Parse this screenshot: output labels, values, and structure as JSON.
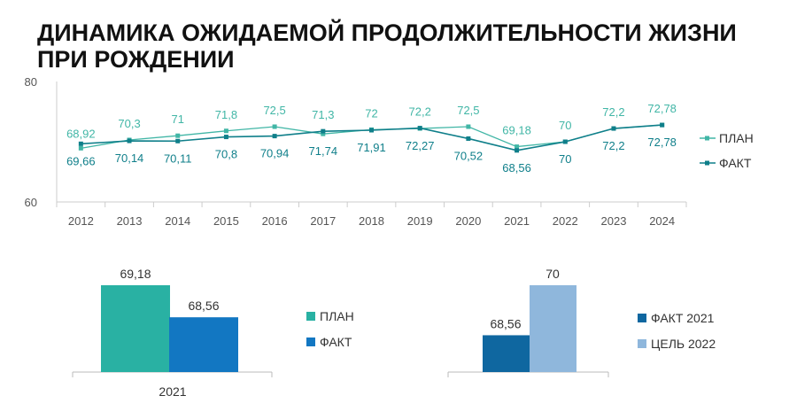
{
  "title": "ДИНАМИКА ОЖИДАЕМОЙ ПРОДОЛЖИТЕЛЬНОСТИ ЖИЗНИ ПРИ РОЖДЕНИИ",
  "colors": {
    "plan": "#41b6a6",
    "fact": "#0f7f8a",
    "bar_plan": "#29b1a3",
    "bar_fact": "#1277c2",
    "bar_fact2021": "#0f67a0",
    "bar_goal2022": "#8fb7dc"
  },
  "chart_data": [
    {
      "type": "line",
      "title": "",
      "categories": [
        "2012",
        "2013",
        "2014",
        "2015",
        "2016",
        "2017",
        "2018",
        "2019",
        "2020",
        "2021",
        "2022",
        "2023",
        "2024"
      ],
      "ylim": [
        60,
        80
      ],
      "yticks": [
        "60",
        "80"
      ],
      "series": [
        {
          "name": "ПЛАН",
          "values": [
            68.92,
            70.3,
            71,
            71.8,
            72.5,
            71.3,
            72,
            72.2,
            72.5,
            69.18,
            70,
            72.2,
            72.78
          ],
          "labels": [
            "68,92",
            "70,3",
            "71",
            "71,8",
            "72,5",
            "71,3",
            "72",
            "72,2",
            "72,5",
            "69,18",
            "70",
            "72,2",
            "72,78"
          ]
        },
        {
          "name": "ФАКТ",
          "values": [
            69.66,
            70.14,
            70.11,
            70.8,
            70.94,
            71.74,
            71.91,
            72.27,
            70.52,
            68.56,
            70,
            72.2,
            72.78
          ],
          "labels": [
            "69,66",
            "70,14",
            "70,11",
            "70,8",
            "70,94",
            "71,74",
            "71,91",
            "72,27",
            "70,52",
            "68,56",
            "70",
            "72,2",
            "72,78"
          ]
        }
      ],
      "legend": "right"
    },
    {
      "type": "bar",
      "categories": [
        "2021"
      ],
      "series": [
        {
          "name": "ПЛАН",
          "values": [
            69.18
          ],
          "label": "69,18"
        },
        {
          "name": "ФАКТ",
          "values": [
            68.56
          ],
          "label": "68,56"
        }
      ],
      "legend": "right"
    },
    {
      "type": "bar",
      "categories": [
        ""
      ],
      "series": [
        {
          "name": "ФАКТ 2021",
          "values": [
            68.56
          ],
          "label": "68,56"
        },
        {
          "name": "ЦЕЛЬ 2022",
          "values": [
            70
          ],
          "label": "70"
        }
      ],
      "legend": "right"
    }
  ]
}
